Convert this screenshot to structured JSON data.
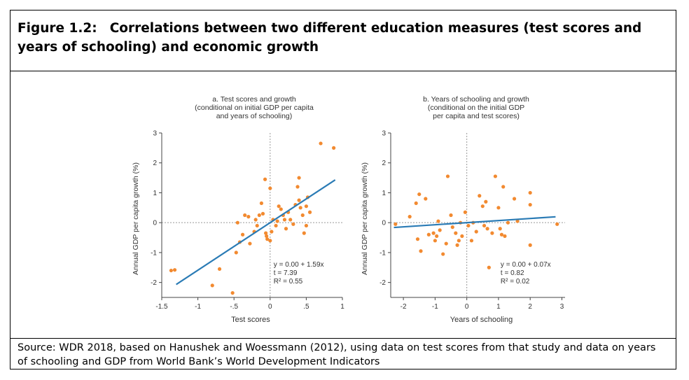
{
  "figure": {
    "number": "Figure 1.2:",
    "title": "Correlations between two different education measures (test scores and years of schooling) and economic growth"
  },
  "source": "Source:  WDR 2018, based on Hanushek and Woessmann (2012), using data on test scores from that study and data on years of schooling and GDP from World Bank’s World Development Indicators",
  "colors": {
    "points": "#f28a30",
    "line": "#2a7bb5",
    "axis": "#444444",
    "ref": "#999999"
  },
  "chart_data": [
    {
      "type": "scatter",
      "title_lines": [
        "a. Test scores and growth",
        "(conditional on initial GDP per capita",
        "and years of schooling)"
      ],
      "xlabel": "Test scores",
      "ylabel": "Annual GDP per capita growth (%)",
      "xlim": [
        -1.5,
        1.0
      ],
      "ylim": [
        -2.5,
        3.0
      ],
      "xticks": [
        -1.5,
        -1,
        -0.5,
        0,
        0.5,
        1
      ],
      "xtick_labels": [
        "-1.5",
        "-1",
        "-.5",
        "0",
        ".5",
        "1"
      ],
      "yticks": [
        -2,
        -1,
        0,
        1,
        2,
        3
      ],
      "ytick_labels": [
        "-2",
        "-1",
        "0",
        "1",
        "2",
        "3"
      ],
      "fit": {
        "intercept": 0.0,
        "slope": 1.59,
        "x_range": [
          -1.3,
          0.9
        ]
      },
      "stats": [
        "y = 0.00 + 1.59x",
        "t = 7.39",
        "R² = 0.55"
      ],
      "points": [
        [
          -1.32,
          -1.58
        ],
        [
          -1.37,
          -1.6
        ],
        [
          -0.8,
          -2.1
        ],
        [
          -0.7,
          -1.55
        ],
        [
          -0.52,
          -2.35
        ],
        [
          -0.47,
          -1.0
        ],
        [
          -0.42,
          -0.65
        ],
        [
          -0.38,
          -0.4
        ],
        [
          -0.28,
          -0.7
        ],
        [
          -0.22,
          -0.3
        ],
        [
          -0.18,
          -0.1
        ],
        [
          -0.3,
          0.2
        ],
        [
          -0.35,
          0.25
        ],
        [
          -0.45,
          0.0
        ],
        [
          -0.2,
          0.1
        ],
        [
          -0.15,
          0.25
        ],
        [
          -0.12,
          0.65
        ],
        [
          -0.1,
          0.3
        ],
        [
          -0.06,
          -0.35
        ],
        [
          -0.05,
          -0.45
        ],
        [
          -0.04,
          -0.55
        ],
        [
          0.0,
          -0.6
        ],
        [
          0.02,
          -0.3
        ],
        [
          0.04,
          0.1
        ],
        [
          0.0,
          1.15
        ],
        [
          -0.07,
          1.45
        ],
        [
          0.08,
          -0.1
        ],
        [
          0.1,
          0.05
        ],
        [
          0.12,
          0.55
        ],
        [
          0.15,
          0.45
        ],
        [
          0.18,
          0.25
        ],
        [
          0.2,
          0.1
        ],
        [
          0.22,
          -0.2
        ],
        [
          0.25,
          0.35
        ],
        [
          0.28,
          0.1
        ],
        [
          0.32,
          -0.05
        ],
        [
          0.35,
          0.6
        ],
        [
          0.38,
          1.2
        ],
        [
          0.4,
          0.75
        ],
        [
          0.42,
          0.5
        ],
        [
          0.45,
          0.25
        ],
        [
          0.47,
          -0.35
        ],
        [
          0.5,
          0.55
        ],
        [
          0.52,
          0.85
        ],
        [
          0.55,
          0.35
        ],
        [
          0.4,
          1.5
        ],
        [
          0.7,
          2.65
        ],
        [
          0.88,
          2.5
        ],
        [
          0.5,
          -0.1
        ]
      ]
    },
    {
      "type": "scatter",
      "title_lines": [
        "b. Years of schooling and growth",
        "(conditional on the initial GDP",
        "per capita and test scores)"
      ],
      "xlabel": "Years of schooling",
      "ylabel": "Annual GDP per capita growth (%)",
      "xlim": [
        -2.4,
        3.1
      ],
      "ylim": [
        -2.5,
        3.0
      ],
      "xticks": [
        -2,
        -1,
        0,
        1,
        2,
        3
      ],
      "xtick_labels": [
        "-2",
        "-1",
        "0",
        "1",
        "2",
        "3"
      ],
      "yticks": [
        -2,
        -1,
        0,
        1,
        2,
        3
      ],
      "ytick_labels": [
        "-2",
        "-1",
        "0",
        "1",
        "2",
        "3"
      ],
      "fit": {
        "intercept": 0.0,
        "slope": 0.07,
        "x_range": [
          -2.3,
          2.8
        ]
      },
      "stats": [
        "y = 0.00 + 0.07x",
        "t = 0.82",
        "R² = 0.02"
      ],
      "points": [
        [
          -2.25,
          -0.05
        ],
        [
          -1.8,
          0.2
        ],
        [
          -1.6,
          0.65
        ],
        [
          -1.5,
          0.95
        ],
        [
          -1.3,
          0.8
        ],
        [
          -1.55,
          -0.55
        ],
        [
          -1.45,
          -0.95
        ],
        [
          -1.2,
          -0.4
        ],
        [
          -1.05,
          -0.35
        ],
        [
          -0.95,
          -0.45
        ],
        [
          -0.85,
          -0.25
        ],
        [
          -0.75,
          -1.05
        ],
        [
          -0.65,
          -0.7
        ],
        [
          -0.6,
          1.55
        ],
        [
          -0.5,
          0.25
        ],
        [
          -0.45,
          -0.15
        ],
        [
          -0.35,
          -0.35
        ],
        [
          -0.25,
          -0.6
        ],
        [
          -0.2,
          0.0
        ],
        [
          -0.15,
          -0.45
        ],
        [
          -0.05,
          0.35
        ],
        [
          0.05,
          -0.1
        ],
        [
          0.15,
          -0.6
        ],
        [
          0.3,
          -0.3
        ],
        [
          0.4,
          0.9
        ],
        [
          0.5,
          0.55
        ],
        [
          0.6,
          0.7
        ],
        [
          0.65,
          -0.2
        ],
        [
          0.7,
          -1.5
        ],
        [
          0.8,
          -0.35
        ],
        [
          0.9,
          1.55
        ],
        [
          1.0,
          0.5
        ],
        [
          1.05,
          -0.2
        ],
        [
          1.1,
          -0.4
        ],
        [
          1.2,
          -0.45
        ],
        [
          1.3,
          0.0
        ],
        [
          1.5,
          0.8
        ],
        [
          1.6,
          0.05
        ],
        [
          2.0,
          1.0
        ],
        [
          2.0,
          0.6
        ],
        [
          2.0,
          -0.75
        ],
        [
          2.85,
          -0.05
        ],
        [
          -0.9,
          0.05
        ],
        [
          0.2,
          0.0
        ],
        [
          1.15,
          1.2
        ],
        [
          -1.0,
          -0.6
        ],
        [
          -0.3,
          -0.75
        ],
        [
          0.55,
          -0.1
        ]
      ]
    }
  ]
}
